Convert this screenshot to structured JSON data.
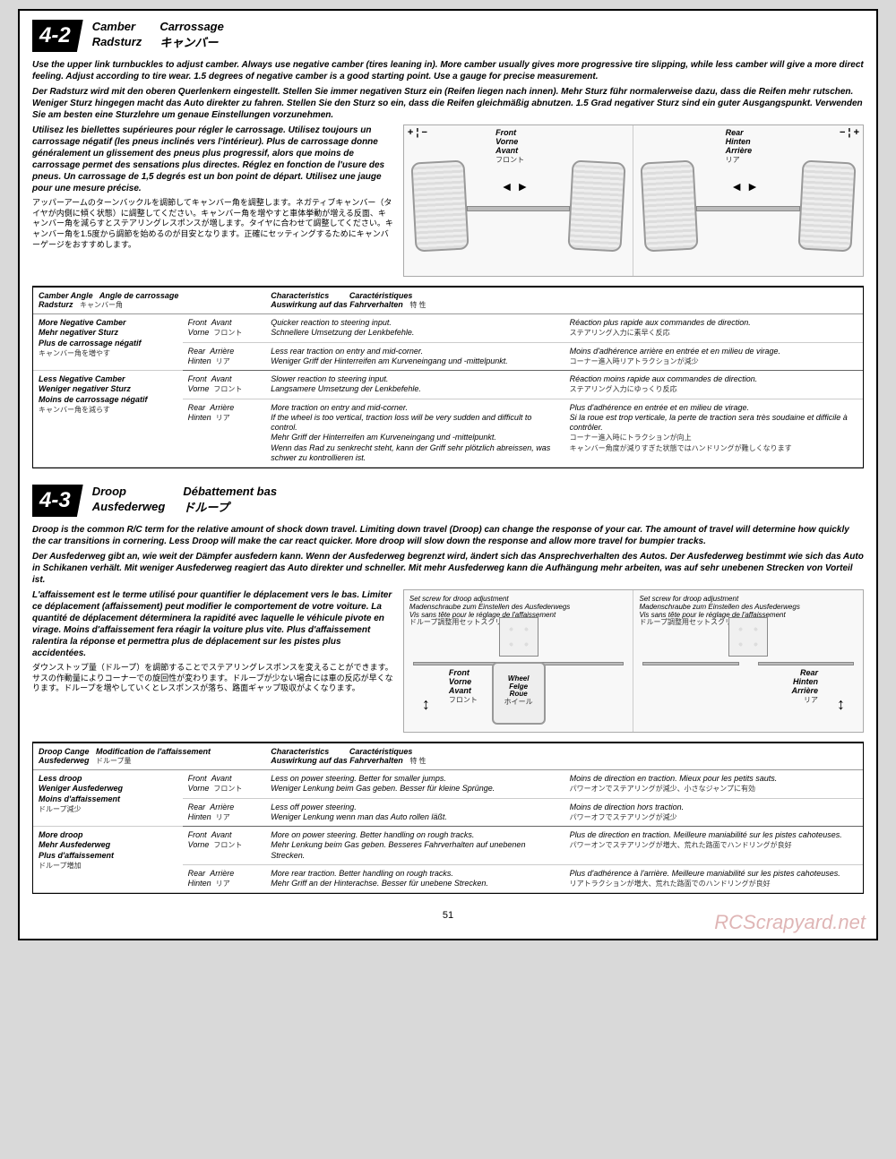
{
  "page_number": "51",
  "watermark": "RCScrapyard.net",
  "section42": {
    "num": "4-2",
    "titles": {
      "en": "Camber",
      "de": "Radsturz",
      "fr": "Carrossage",
      "jp": "キャンバー"
    },
    "intro_en": "Use the upper link turnbuckles to adjust camber.  Always use negative camber (tires leaning in). More camber usually gives more progressive tire slipping, while less camber will give a more direct feeling. Adjust according to tire wear.  1.5 degrees of negative camber is a good starting point.  Use a gauge for precise measurement.",
    "intro_de": "Der Radsturz wird mit den oberen Querlenkern eingestellt. Stellen Sie immer negativen Sturz ein (Reifen liegen nach innen). Mehr Sturz führ normalerweise dazu, dass die Reifen mehr rutschen. Weniger Sturz hingegen macht das Auto direkter zu fahren. Stellen Sie den Sturz so ein, dass die Reifen gleichmäßig abnutzen. 1.5 Grad negativer Sturz sind ein guter Ausgangspunkt. Verwenden Sie am besten eine Sturzlehre um genaue Einstellungen vorzunehmen.",
    "intro_fr": "Utilisez les biellettes supérieures pour régler le carrossage. Utilisez toujours un carrossage négatif (les pneus inclinés vers l'intérieur). Plus de carrossage donne généralement un glissement des pneus plus progressif, alors que moins de carrossage permet des sensations plus directes. Réglez en fonction de l'usure des pneus. Un carrossage de 1,5 degrés est un bon point de départ. Utilisez une jauge pour une mesure précise.",
    "intro_jp": "アッパーアームのターンバックルを調節してキャンバー角を調整します。ネガティブキャンバー（タイヤが内側に傾く状態）に調整してください。キャンバー角を増やすと車体挙動が増える反面、キャンバー角を減らすとステアリングレスポンスが増します。タイヤに合わせて調整してください。キャンバー角を1.5度から調節を始めるのが目安となります。正確にセッティングするためにキャンバーゲージをおすすめします。",
    "diag": {
      "front": {
        "en": "Front",
        "de": "Vorne",
        "fr": "Avant",
        "jp": "フロント"
      },
      "rear": {
        "en": "Rear",
        "de": "Hinten",
        "fr": "Arrière",
        "jp": "リア"
      },
      "pm_left": "+ ¦ −",
      "pm_right": "− ¦ +",
      "arrows": "◄ ►"
    },
    "table": {
      "h1": "Camber Angle",
      "h1de": "Radsturz",
      "h1fr": "Angle de carrossage",
      "h1jp": "キャンバー角",
      "h2": "Characteristics",
      "h2de": "Auswirkung auf das Fahrverhalten",
      "h2fr": "Caractéristiques",
      "h2jp": "特 性",
      "rows": [
        {
          "label_en": "More Negative Camber",
          "label_de": "Mehr negativer Sturz",
          "label_fr": "Plus de carrossage négatif",
          "label_jp": "キャンバー角を増やす",
          "pos_en": "Front",
          "pos_de": "Vorne",
          "pos_fr": "Avant",
          "pos_jp": "フロント",
          "char_en": "Quicker reaction to steering input.",
          "char_de": "Schnellere Umsetzung der Lenkbefehle.",
          "char_fr": "Réaction plus rapide aux commandes de direction.",
          "char_jp": "ステアリング入力に素早く反応"
        },
        {
          "pos_en": "Rear",
          "pos_de": "Hinten",
          "pos_fr": "Arrière",
          "pos_jp": "リア",
          "char_en": "Less rear traction on entry and mid-corner.",
          "char_de": "Weniger Griff der Hinterreifen am Kurveneingang und -mittelpunkt.",
          "char_fr": "Moins d'adhérence arrière en entrée et en milieu de virage.",
          "char_jp": "コーナー進入時リアトラクションが減少"
        },
        {
          "label_en": "Less Negative Camber",
          "label_de": "Weniger negativer Sturz",
          "label_fr": "Moins de carrossage négatif",
          "label_jp": "キャンバー角を減らす",
          "pos_en": "Front",
          "pos_de": "Vorne",
          "pos_fr": "Avant",
          "pos_jp": "フロント",
          "char_en": "Slower reaction to steering input.",
          "char_de": "Langsamere Umsetzung der Lenkbefehle.",
          "char_fr": "Réaction moins rapide aux commandes de direction.",
          "char_jp": "ステアリング入力にゆっくり反応"
        },
        {
          "pos_en": "Rear",
          "pos_de": "Hinten",
          "pos_fr": "Arrière",
          "pos_jp": "リア",
          "char_en": "More traction on entry and mid-corner.",
          "char_en2": "If the wheel is too vertical, traction loss will be very sudden and difficult to control.",
          "char_de": "Mehr Griff der Hinterreifen am Kurveneingang und -mittelpunkt.",
          "char_de2": "Wenn das Rad zu senkrecht steht, kann der Griff sehr plötzlich abreissen, was schwer zu kontrollieren ist.",
          "char_fr": "Plus d'adhérence en entrée et en milieu de virage.",
          "char_fr2": "Si la roue est trop verticale, la perte de traction sera très soudaine et difficile à contrôler.",
          "char_jp": "コーナー進入時にトラクションが向上",
          "char_jp2": "キャンバー角度が減りすぎた状態ではハンドリングが難しくなります"
        }
      ]
    }
  },
  "section43": {
    "num": "4-3",
    "titles": {
      "en": "Droop",
      "de": "Ausfederweg",
      "fr": "Débattement bas",
      "jp": "ドループ"
    },
    "intro_en": "Droop is the common R/C term for the relative amount of shock down travel. Limiting down travel (Droop)  can change the response of your car.  The amount of travel will determine how quickly the car transitions in cornering. Less Droop will make the car react quicker. More droop will slow down the response and allow more travel for bumpier tracks.",
    "intro_de": "Der Ausfederweg gibt an, wie weit der Dämpfer ausfedern kann. Wenn der Ausfederweg begrenzt wird, ändert sich das Ansprechverhalten des Autos. Der Ausfederweg bestimmt wie sich das Auto in Schikanen verhält. Mit weniger Ausfederweg reagiert das Auto direkter und schneller. Mit mehr Ausfederweg kann die Aufhängung mehr arbeiten, was auf sehr unebenen Strecken von Vorteil ist.",
    "intro_fr": "L'affaissement est le terme utilisé pour quantifier le déplacement vers le bas. Limiter ce déplacement (affaissement) peut modifier le comportement de votre voiture. La quantité de déplacement déterminera la rapidité avec laquelle le véhicule pivote en virage. Moins d'affaissement fera réagir la voiture plus vite. Plus d'affaissement ralentira la réponse et permettra plus de déplacement sur les pistes plus accidentées.",
    "intro_jp": "ダウンストップ量（ドループ）を調節することでステアリングレスポンスを変えることができます。サスの作動量によりコーナーでの旋回性が変わります。ドループが少ない場合には車の反応が早くなります。ドループを増やしていくとレスポンスが落ち、路面ギャップ吸収がよくなります。",
    "diag": {
      "set_screw_en": "Set screw for droop adjustment",
      "set_screw_de": "Madenschraube zum Einstellen des Ausfederwegs",
      "set_screw_fr": "Vis sans tête pour le réglage de l'affaissement",
      "set_screw_jp": "ドループ調整用セットスクリュー",
      "front": {
        "en": "Front",
        "de": "Vorne",
        "fr": "Avant",
        "jp": "フロント"
      },
      "rear": {
        "en": "Rear",
        "de": "Hinten",
        "fr": "Arrière",
        "jp": "リア"
      },
      "wheel": {
        "en": "Wheel",
        "de": "Felge",
        "fr": "Roue",
        "jp": "ホイール"
      },
      "arrow": "↕"
    },
    "table": {
      "h1": "Droop Cange",
      "h1de": "Ausfederweg",
      "h1fr": "Modification de l'affaissement",
      "h1jp": "ドループ量",
      "h2": "Characteristics",
      "h2de": "Auswirkung auf das Fahrverhalten",
      "h2fr": "Caractéristiques",
      "h2jp": "特 性",
      "rows": [
        {
          "label_en": "Less droop",
          "label_de": "Weniger Ausfederweg",
          "label_fr": "Moins d'affaissement",
          "label_jp": "ドループ減少",
          "pos_en": "Front",
          "pos_de": "Vorne",
          "pos_fr": "Avant",
          "pos_jp": "フロント",
          "char_en": "Less on power steering. Better for smaller jumps.",
          "char_de": "Weniger Lenkung beim Gas geben. Besser für kleine Sprünge.",
          "char_fr": "Moins de direction en traction. Mieux pour les petits sauts.",
          "char_jp": "パワーオンでステアリングが減少、小さなジャンプに有効"
        },
        {
          "pos_en": "Rear",
          "pos_de": "Hinten",
          "pos_fr": "Arrière",
          "pos_jp": "リア",
          "char_en": "Less off power steering.",
          "char_de": "Weniger Lenkung wenn man das Auto rollen läßt.",
          "char_fr": "Moins de direction hors traction.",
          "char_jp": "パワーオフでステアリングが減少"
        },
        {
          "label_en": "More droop",
          "label_de": "Mehr Ausfederweg",
          "label_fr": "Plus d'affaissement",
          "label_jp": "ドループ増加",
          "pos_en": "Front",
          "pos_de": "Vorne",
          "pos_fr": "Avant",
          "pos_jp": "フロント",
          "char_en": "More on power steering. Better handling on rough tracks.",
          "char_de": "Mehr Lenkung beim Gas geben. Besseres Fahrverhalten auf unebenen Strecken.",
          "char_fr": "Plus de direction en traction. Meilleure maniabilité sur les pistes cahoteuses.",
          "char_jp": "パワーオンでステアリングが増大、荒れた路面でハンドリングが良好"
        },
        {
          "pos_en": "Rear",
          "pos_de": "Hinten",
          "pos_fr": "Arrière",
          "pos_jp": "リア",
          "char_en": "More rear traction. Better handling on rough tracks.",
          "char_de": "Mehr Griff an der Hinterachse. Besser für unebene Strecken.",
          "char_fr": "Plus d'adhérence à l'arrière. Meilleure maniabilité sur les pistes cahoteuses.",
          "char_jp": "リアトラクションが増大、荒れた路面でのハンドリングが良好"
        }
      ]
    }
  }
}
